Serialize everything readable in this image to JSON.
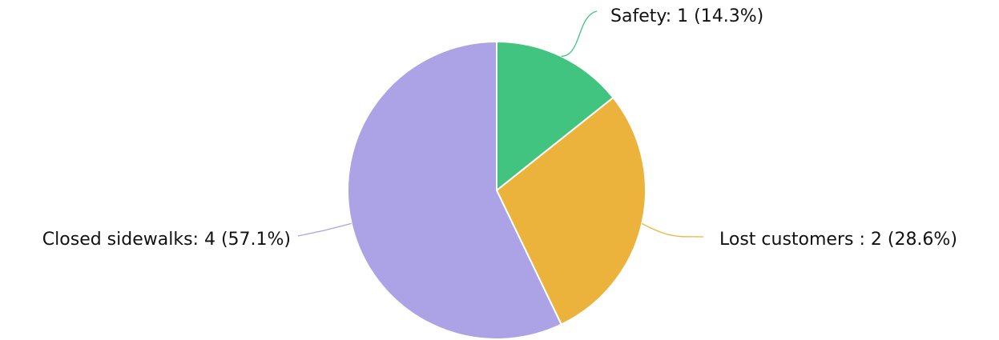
{
  "chart_data": {
    "type": "pie",
    "slices": [
      {
        "label": "Safety",
        "value": 1,
        "percent": 14.3,
        "color": "#41c47f",
        "text": "Safety: 1 (14.3%)"
      },
      {
        "label": "Lost customers ",
        "value": 2,
        "percent": 28.6,
        "color": "#ebb33b",
        "text": "Lost customers : 2 (28.6%)"
      },
      {
        "label": "Closed sidewalks",
        "value": 4,
        "percent": 57.1,
        "color": "#aba3e5",
        "text": "Closed sidewalks: 4 (57.1%)"
      }
    ],
    "start_angle": "12 o'clock",
    "direction": "clockwise",
    "legend": "none"
  }
}
